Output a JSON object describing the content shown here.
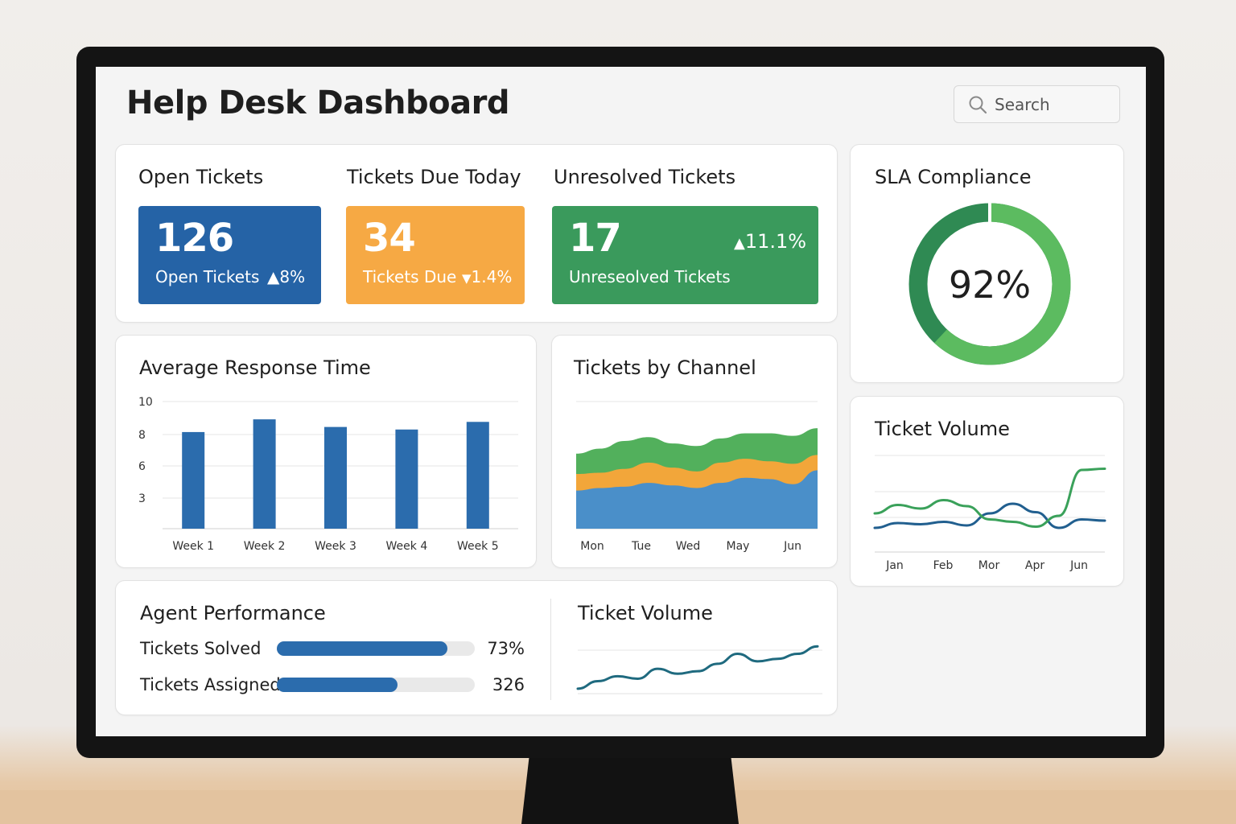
{
  "header": {
    "title": "Help Desk Dashboard"
  },
  "search": {
    "placeholder": "Search",
    "icon": "search-icon"
  },
  "kpis": [
    {
      "heading": "Open Tickets",
      "value": "126",
      "label": "Open Tickets",
      "delta": "8%",
      "direction": "up",
      "color": "#2563a6"
    },
    {
      "heading": "Tickets Due Today",
      "value": "34",
      "label": "Tickets Due",
      "delta": "1.4%",
      "direction": "down",
      "color": "#f6a944"
    },
    {
      "heading": "Unresolved Tickets",
      "value": "17",
      "label": "Unreseolved Tickets",
      "delta": "11.1%",
      "direction": "up",
      "color": "#3a9a5c"
    }
  ],
  "sla": {
    "title": "SLA Compliance",
    "value": "92%",
    "percent": 92
  },
  "response": {
    "title": "Average Response Time"
  },
  "channel": {
    "title": "Tickets by Channel"
  },
  "volume_side": {
    "title": "Ticket Volume"
  },
  "agent": {
    "title": "Agent Performance",
    "rows": [
      {
        "label": "Tickets Solved",
        "value": "73%",
        "fill": 0.86
      },
      {
        "label": "Tickets Assigned",
        "value": "326",
        "fill": 0.61
      }
    ]
  },
  "volume_bottom": {
    "title": "Ticket Volume"
  },
  "chart_data": [
    {
      "type": "bar",
      "title": "Average Response Time",
      "categories": [
        "Week 1",
        "Week 2",
        "Week 3",
        "Week 4",
        "Week 5"
      ],
      "values": [
        7.6,
        8.6,
        8.0,
        7.8,
        8.4
      ],
      "yticks": [
        "10",
        "8",
        "6",
        "3"
      ],
      "ylim": [
        0,
        10
      ],
      "grid": true,
      "colors": [
        "#2b6cad"
      ]
    },
    {
      "type": "area",
      "title": "Tickets by Channel",
      "categories": [
        "Mon",
        "Tue",
        "Wed",
        "May",
        "Jun"
      ],
      "x": [
        0,
        0.4,
        0.8,
        1.2,
        1.6,
        2.0,
        2.4,
        2.8,
        3.2,
        3.6,
        4.0
      ],
      "series": [
        {
          "values": [
            3.0,
            3.2,
            3.3,
            3.6,
            3.4,
            3.2,
            3.6,
            4.0,
            3.9,
            3.5,
            4.6
          ],
          "color": "#4a8fc9"
        },
        {
          "values": [
            1.3,
            1.2,
            1.4,
            1.6,
            1.4,
            1.3,
            1.6,
            1.5,
            1.4,
            1.6,
            1.2
          ],
          "color": "#f2a63a"
        },
        {
          "values": [
            1.6,
            1.9,
            2.2,
            2.0,
            1.9,
            2.0,
            1.9,
            2.0,
            2.2,
            2.2,
            2.1
          ],
          "color": "#52b05c"
        }
      ],
      "ylim": [
        0,
        10
      ]
    },
    {
      "type": "line",
      "title": "Ticket Volume",
      "categories": [
        "Jan",
        "Feb",
        "Mor",
        "Apr",
        "Jun"
      ],
      "x": [
        0,
        0.5,
        1.0,
        1.5,
        2.0,
        2.5,
        3.0,
        3.5,
        4.0,
        4.5,
        5.0
      ],
      "series": [
        {
          "values": [
            2.0,
            2.4,
            2.3,
            2.5,
            2.2,
            3.2,
            4.0,
            3.3,
            2.0,
            2.7,
            2.6
          ],
          "color": "#215f8f"
        },
        {
          "values": [
            3.2,
            3.9,
            3.6,
            4.3,
            3.8,
            2.7,
            2.5,
            2.1,
            3.0,
            6.8,
            6.9
          ],
          "color": "#3aa15a"
        }
      ],
      "ylim": [
        0,
        8
      ],
      "grid": true
    },
    {
      "type": "line",
      "title": "Ticket Volume",
      "x": [
        0,
        1,
        2,
        3,
        4,
        5,
        6,
        7,
        8,
        9,
        10,
        11,
        12
      ],
      "series": [
        {
          "values": [
            1,
            2.5,
            3.5,
            3,
            5,
            4,
            4.5,
            6,
            8,
            6.5,
            7,
            8,
            9.5
          ],
          "color": "#1f6a7f"
        }
      ],
      "ylim": [
        0,
        11
      ],
      "grid": true
    }
  ]
}
